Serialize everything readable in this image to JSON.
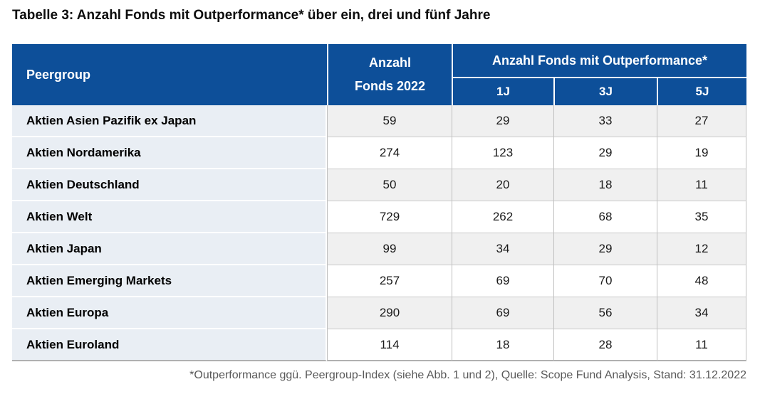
{
  "title": "Tabelle 3: Anzahl Fonds mit Outperformance* über ein, drei und fünf Jahre",
  "table": {
    "header": {
      "peergroup": "Peergroup",
      "anzahl_line1": "Anzahl",
      "anzahl_line2": "Fonds 2022",
      "outperformance": "Anzahl Fonds mit Outperformance*",
      "sub": [
        "1J",
        "3J",
        "5J"
      ]
    },
    "rows": [
      {
        "label": "Aktien Asien Pazifik ex Japan",
        "fonds_2022": "59",
        "y1": "29",
        "y3": "33",
        "y5": "27"
      },
      {
        "label": "Aktien Nordamerika",
        "fonds_2022": "274",
        "y1": "123",
        "y3": "29",
        "y5": "19"
      },
      {
        "label": "Aktien Deutschland",
        "fonds_2022": "50",
        "y1": "20",
        "y3": "18",
        "y5": "11"
      },
      {
        "label": "Aktien Welt",
        "fonds_2022": "729",
        "y1": "262",
        "y3": "68",
        "y5": "35"
      },
      {
        "label": "Aktien Japan",
        "fonds_2022": "99",
        "y1": "34",
        "y3": "29",
        "y5": "12"
      },
      {
        "label": "Aktien Emerging Markets",
        "fonds_2022": "257",
        "y1": "69",
        "y3": "70",
        "y5": "48"
      },
      {
        "label": "Aktien Europa",
        "fonds_2022": "290",
        "y1": "69",
        "y3": "56",
        "y5": "34"
      },
      {
        "label": "Aktien Euroland",
        "fonds_2022": "114",
        "y1": "18",
        "y3": "28",
        "y5": "11"
      }
    ]
  },
  "footnote": "*Outperformance ggü. Peergroup-Index (siehe Abb. 1 und 2), Quelle: Scope Fund Analysis, Stand: 31.12.2022",
  "colors": {
    "header_bg": "#0d4f99",
    "header_text": "#ffffff",
    "label_column_bg": "#e9eef4",
    "row_stripe_bg": "#f0f0f0",
    "row_plain_bg": "#ffffff",
    "cell_border": "#bfbfbf",
    "footnote_text": "#595959"
  },
  "chart_data": {
    "type": "table",
    "title": "Tabelle 3: Anzahl Fonds mit Outperformance* über ein, drei und fünf Jahre",
    "columns": [
      "Peergroup",
      "Anzahl Fonds 2022",
      "Outperformance 1J",
      "Outperformance 3J",
      "Outperformance 5J"
    ],
    "rows": [
      [
        "Aktien Asien Pazifik ex Japan",
        59,
        29,
        33,
        27
      ],
      [
        "Aktien Nordamerika",
        274,
        123,
        29,
        19
      ],
      [
        "Aktien Deutschland",
        50,
        20,
        18,
        11
      ],
      [
        "Aktien Welt",
        729,
        262,
        68,
        35
      ],
      [
        "Aktien Japan",
        99,
        34,
        29,
        12
      ],
      [
        "Aktien Emerging Markets",
        257,
        69,
        70,
        48
      ],
      [
        "Aktien Europa",
        290,
        69,
        56,
        34
      ],
      [
        "Aktien Euroland",
        114,
        18,
        28,
        11
      ]
    ]
  }
}
